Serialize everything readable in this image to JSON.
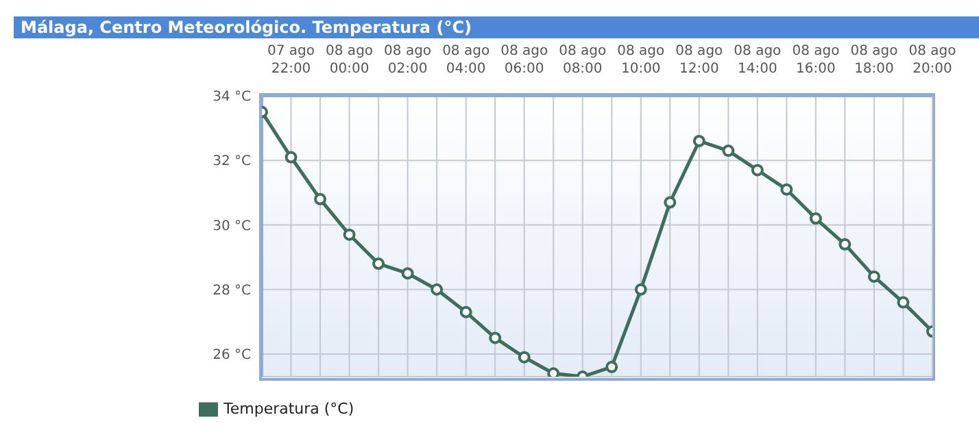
{
  "chart_data": {
    "type": "line",
    "title": "Málaga, Centro Meteorológico. Temperatura (°C)",
    "categories": [
      null,
      "07 ago 22:00",
      null,
      "08 ago 00:00",
      null,
      "08 ago 02:00",
      null,
      "08 ago 04:00",
      null,
      "08 ago 06:00",
      null,
      "08 ago 08:00",
      null,
      "08 ago 10:00",
      null,
      "08 ago 12:00",
      null,
      "08 ago 14:00",
      null,
      "08 ago 16:00",
      null,
      "08 ago 18:00",
      null,
      "08 ago 20:00"
    ],
    "series": [
      {
        "name": "Temperatura (°C)",
        "color": "#3f6e5c",
        "values": [
          33.5,
          32.1,
          30.8,
          29.7,
          28.8,
          28.5,
          28.0,
          27.3,
          26.5,
          25.9,
          25.4,
          25.3,
          25.6,
          28.0,
          30.7,
          32.6,
          32.3,
          31.7,
          31.1,
          30.2,
          29.4,
          28.4,
          27.6,
          26.7
        ]
      }
    ],
    "ylim": [
      25.3,
      34
    ],
    "yticks": [
      {
        "value": 26,
        "label": "26 °C"
      },
      {
        "value": 28,
        "label": "28 °C"
      },
      {
        "value": 30,
        "label": "30 °C"
      },
      {
        "value": 32,
        "label": "32 °C"
      },
      {
        "value": 34,
        "label": "34 °C"
      }
    ],
    "grid": true,
    "legend": "bottom left",
    "marker": "circle",
    "line_style": "solid"
  }
}
